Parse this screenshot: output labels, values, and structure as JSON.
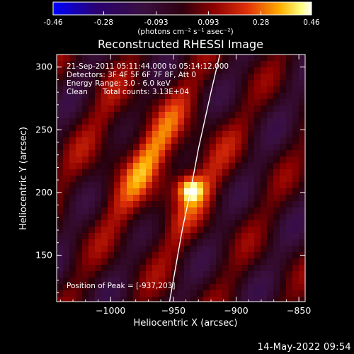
{
  "colorbar": {
    "min_label": "-0.46",
    "ticks": [
      "-0.46",
      "-0.28",
      "-0.093",
      "0.093",
      "0.28",
      "0.46"
    ],
    "tick_values": [
      -0.46,
      -0.28,
      -0.093,
      0.093,
      0.28,
      0.46
    ],
    "range": [
      -0.46,
      0.46
    ],
    "unit_label": "(photons cm⁻² s⁻¹ asec⁻²)",
    "colormap": [
      "#0000ff",
      "#4b0082",
      "#000000",
      "#8b0000",
      "#ff4500",
      "#ffff00",
      "#ffffff"
    ]
  },
  "title": "Reconstructed RHESSI Image",
  "info": {
    "time_range": "21-Sep-2011 05:11:44.000 to 05:14:12.000",
    "detectors": "Detectors: 3F 4F 5F 6F 7F 8F, Att 0",
    "energy": "Energy Range: 3.0 - 6.0 keV",
    "clean_label": "Clean",
    "total_counts": "Total counts: 3.13E+04",
    "peak": "Position of Peak = [-937,203]"
  },
  "axes": {
    "xlabel": "Heliocentric X (arcsec)",
    "ylabel": "Heliocentric Y (arcsec)",
    "xlim": [
      -1043,
      -845
    ],
    "ylim": [
      113,
      310
    ],
    "xticks": [
      -1000,
      -950,
      -900,
      -850
    ],
    "xtick_labels": [
      "−1000",
      "−950",
      "−900",
      "−850"
    ],
    "yticks": [
      150,
      200,
      250,
      300
    ],
    "ytick_labels": [
      "150",
      "200",
      "250",
      "300"
    ]
  },
  "chart_data": {
    "type": "heatmap",
    "title": "Reconstructed RHESSI Image",
    "xlabel": "Heliocentric X (arcsec)",
    "ylabel": "Heliocentric Y (arcsec)",
    "xlim": [
      -1043,
      -845
    ],
    "ylim": [
      113,
      310
    ],
    "peak": {
      "x": -937,
      "y": 203,
      "value": 0.46
    },
    "limb_curve": [
      [
        -953,
        113
      ],
      [
        -943,
        170
      ],
      [
        -936,
        203
      ],
      [
        -930,
        235
      ],
      [
        -920,
        280
      ],
      [
        -913,
        310
      ]
    ],
    "color_range": [
      -0.46,
      0.46
    ]
  },
  "footer": {
    "timestamp": "14-May-2022 09:54"
  }
}
